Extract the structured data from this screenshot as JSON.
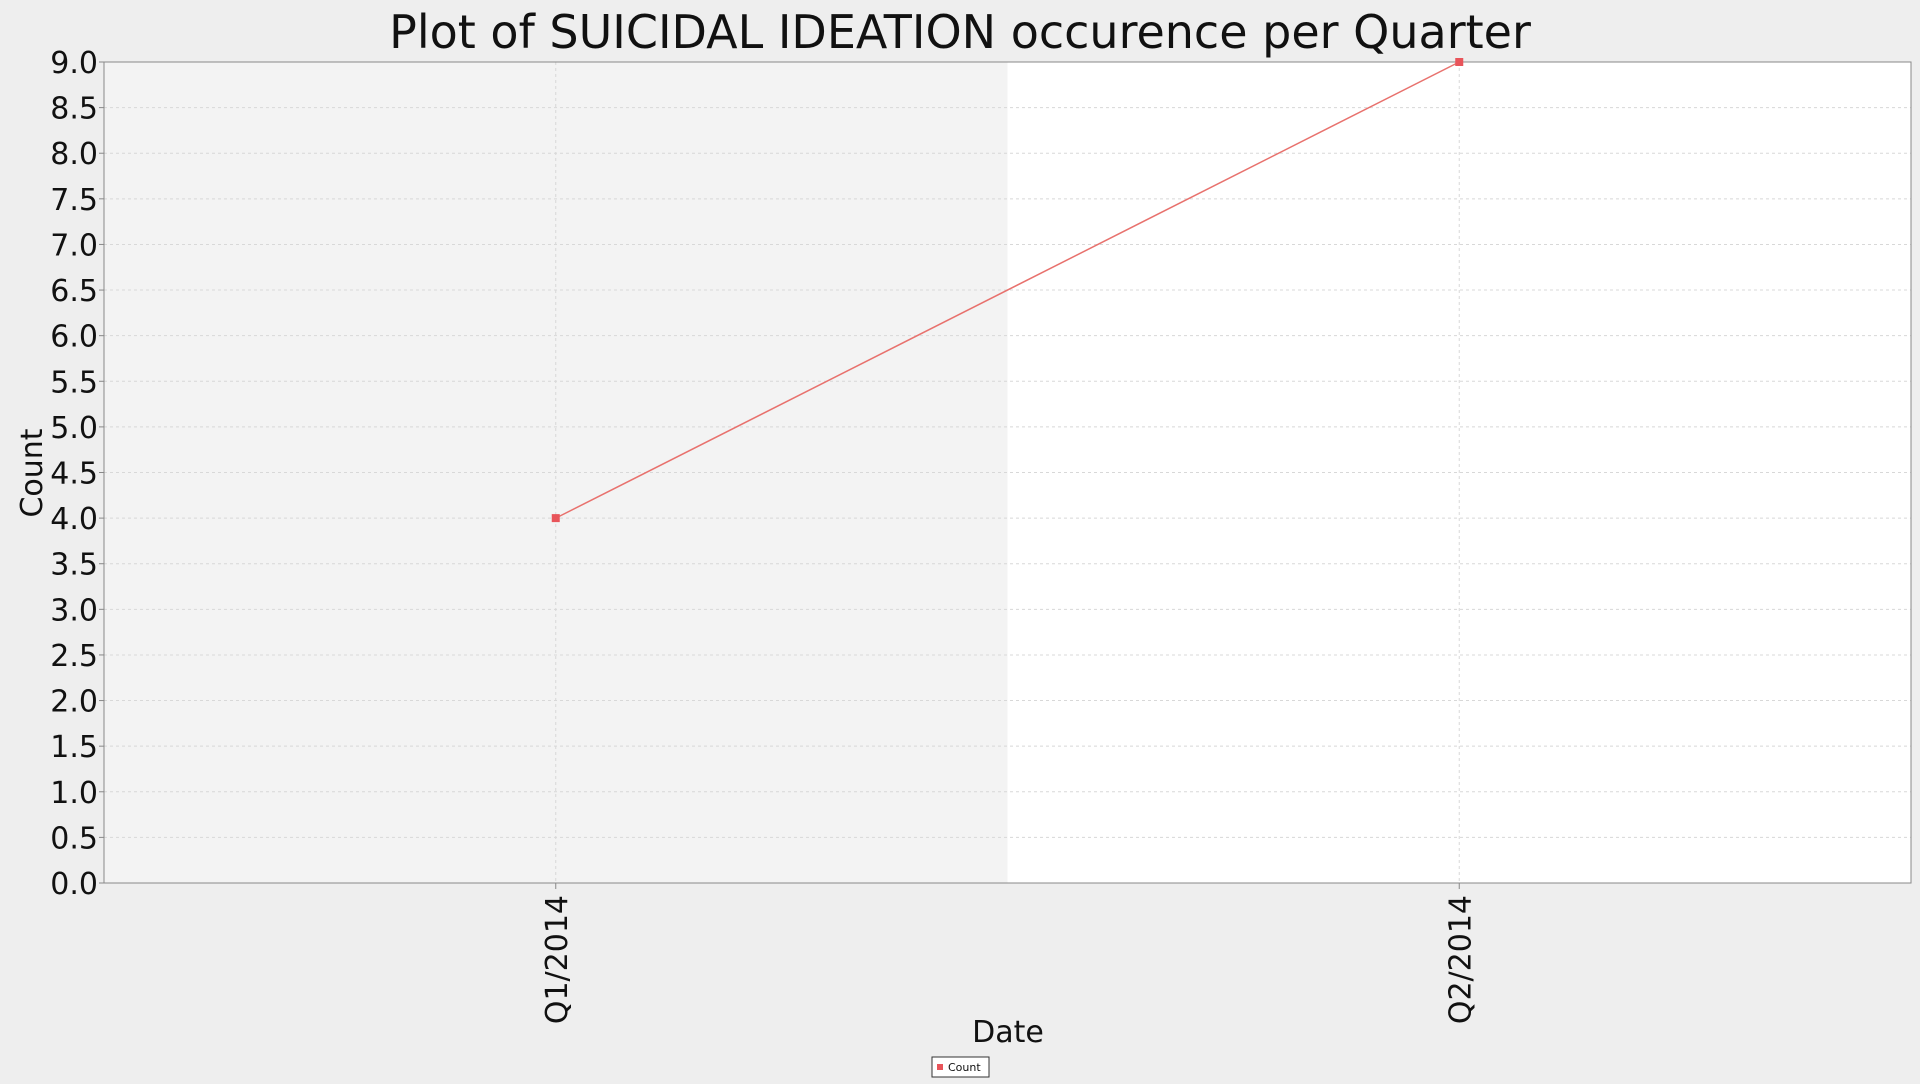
{
  "chart_data": {
    "type": "line",
    "title": "Plot of SUICIDAL IDEATION occurence per Quarter",
    "xlabel": "Date",
    "ylabel": "Count",
    "categories": [
      "Q1/2014",
      "Q2/2014"
    ],
    "series": [
      {
        "name": "Count",
        "values": [
          4,
          9
        ]
      }
    ],
    "ylim": [
      0,
      9.0
    ],
    "yticks": [
      "0.0",
      "0.5",
      "1.0",
      "1.5",
      "2.0",
      "2.5",
      "3.0",
      "3.5",
      "4.0",
      "4.5",
      "5.0",
      "5.5",
      "6.0",
      "6.5",
      "7.0",
      "7.5",
      "8.0",
      "8.5",
      "9.0"
    ],
    "grid": true,
    "legend_position": "bottom-center",
    "colors": {
      "series": "#e8716d",
      "marker": "#e8545a",
      "band_shaded": "#f3f3f3",
      "band_plain": "#ffffff",
      "background": "#eeeeee",
      "grid": "#d8d8d8"
    }
  }
}
